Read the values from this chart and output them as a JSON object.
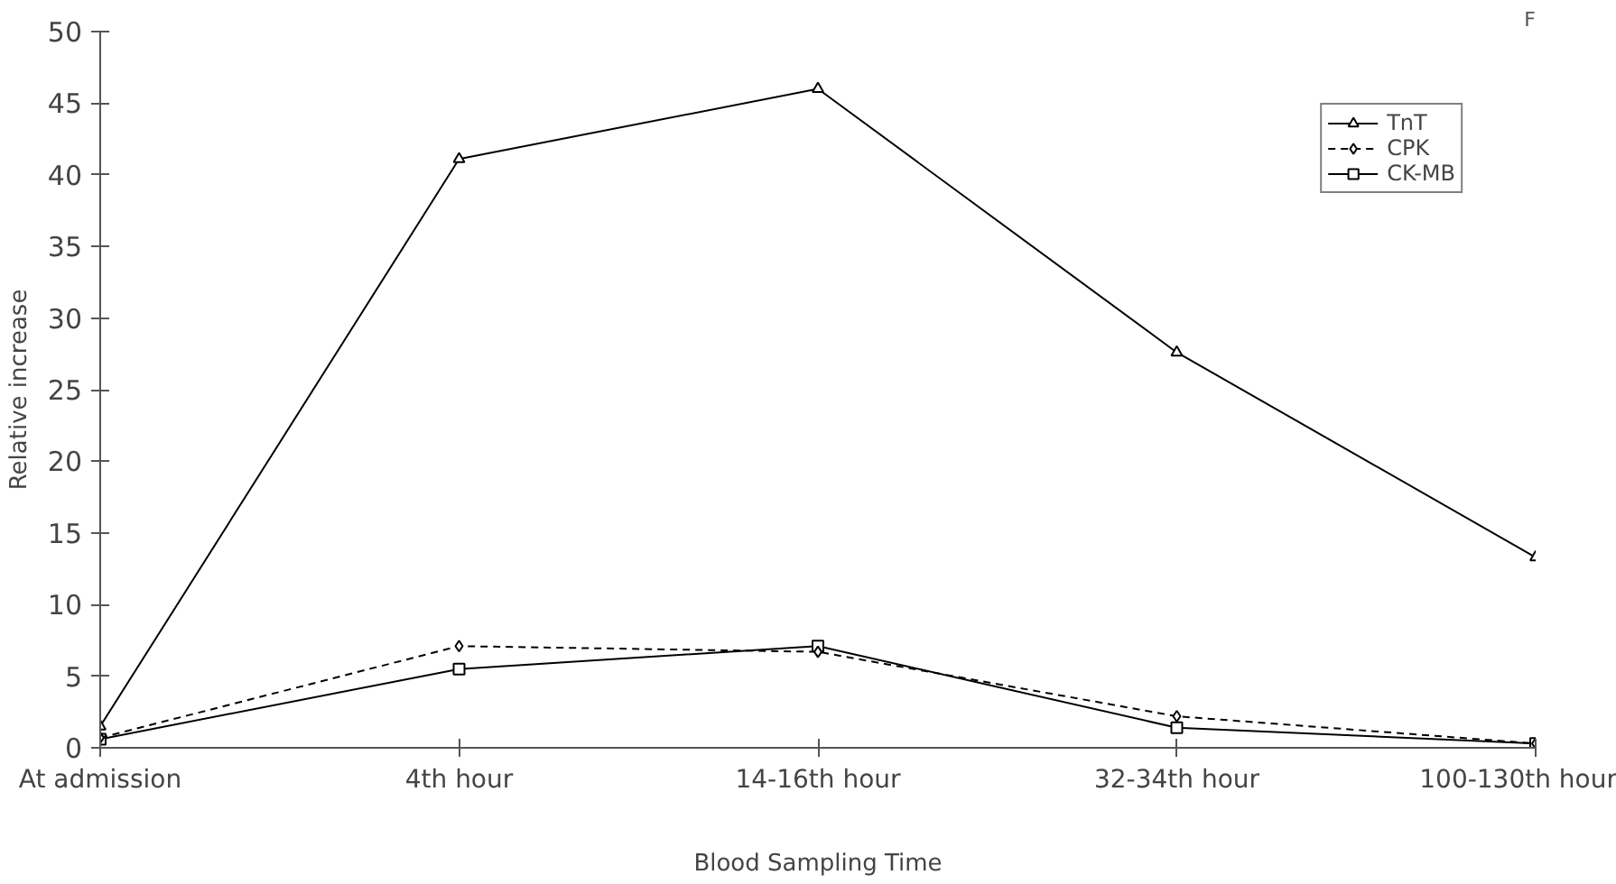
{
  "chart_data": {
    "type": "line",
    "xlabel": "Blood Sampling Time",
    "ylabel": "Relative increase",
    "categories": [
      "At admission",
      "4th hour",
      "14-16th hour",
      "32-34th hour",
      "100-130th hour"
    ],
    "series": [
      {
        "name": "TnT",
        "color": "#000000",
        "marker": "triangle",
        "line_style": "solid",
        "values": [
          1.5,
          41.1,
          46.0,
          27.6,
          13.3
        ]
      },
      {
        "name": "CPK",
        "color": "#000000",
        "marker": "diamond",
        "line_style": "dashed",
        "values": [
          0.7,
          7.1,
          6.7,
          2.2,
          0.3
        ]
      },
      {
        "name": "CK-MB",
        "color": "#000000",
        "marker": "square",
        "line_style": "solid",
        "values": [
          0.6,
          5.5,
          7.1,
          1.4,
          0.3
        ]
      }
    ],
    "ylim": [
      0,
      50
    ],
    "yticks": [
      0,
      5,
      10,
      15,
      20,
      25,
      30,
      35,
      40,
      45,
      50
    ],
    "grid": false,
    "legend": "top right",
    "annotations": [
      "F"
    ]
  }
}
